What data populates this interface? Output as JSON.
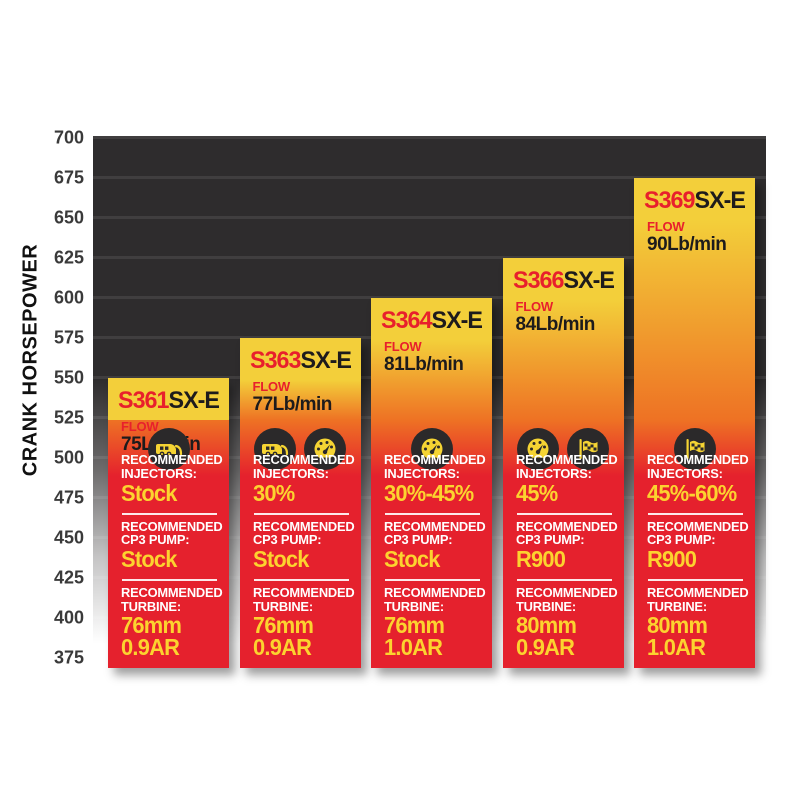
{
  "chart_data": {
    "type": "bar",
    "title": "",
    "ylabel": "CRANK HORSEPOWER",
    "ylim": [
      375,
      700
    ],
    "ytick_step": 25,
    "yticks": [
      700,
      675,
      650,
      625,
      600,
      575,
      550,
      525,
      500,
      475,
      450,
      425,
      400,
      375
    ],
    "categories": [
      "S361SX-E",
      "S363SX-E",
      "S364SX-E",
      "S366SX-E",
      "S369SX-E"
    ],
    "values": [
      550,
      575,
      600,
      625,
      675
    ],
    "grid": "horizontal",
    "legend": "none"
  },
  "colors": {
    "plot_background": "#2e2c2d",
    "bar_yellow": "#f3cf3a",
    "bar_orange": "#ee7224",
    "bar_red": "#e5212d",
    "accent_red": "#e8202c",
    "value_yellow": "#fcd32f",
    "icon_circle": "#2b292a",
    "white": "#ffffff"
  },
  "bars": [
    {
      "model_prefix": "S361",
      "model_suffix": "SX-E",
      "flow_label": "FLOW",
      "flow_value": "75Lb/min",
      "icons": [
        "rv-icon"
      ],
      "injectors_label": "RECOMMENDED INJECTORS:",
      "injectors_value": "Stock",
      "cp3_label": "RECOMMENDED CP3 PUMP:",
      "cp3_value": "Stock",
      "turbine_label": "RECOMMENDED TURBINE:",
      "turbine_mm": "76mm",
      "turbine_ar": "0.9AR",
      "crank_horsepower": 550
    },
    {
      "model_prefix": "S363",
      "model_suffix": "SX-E",
      "flow_label": "FLOW",
      "flow_value": "77Lb/min",
      "icons": [
        "rv-icon",
        "gauge-icon"
      ],
      "injectors_label": "RECOMMENDED INJECTORS:",
      "injectors_value": "30%",
      "cp3_label": "RECOMMENDED CP3 PUMP:",
      "cp3_value": "Stock",
      "turbine_label": "RECOMMENDED TURBINE:",
      "turbine_mm": "76mm",
      "turbine_ar": "0.9AR",
      "crank_horsepower": 575
    },
    {
      "model_prefix": "S364",
      "model_suffix": "SX-E",
      "flow_label": "FLOW",
      "flow_value": "81Lb/min",
      "icons": [
        "gauge-icon"
      ],
      "injectors_label": "RECOMMENDED INJECTORS:",
      "injectors_value": "30%-45%",
      "cp3_label": "RECOMMENDED CP3 PUMP:",
      "cp3_value": "Stock",
      "turbine_label": "RECOMMENDED TURBINE:",
      "turbine_mm": "76mm",
      "turbine_ar": "1.0AR",
      "crank_horsepower": 600
    },
    {
      "model_prefix": "S366",
      "model_suffix": "SX-E",
      "flow_label": "FLOW",
      "flow_value": "84Lb/min",
      "icons": [
        "gauge-icon",
        "flag-icon"
      ],
      "injectors_label": "RECOMMENDED INJECTORS:",
      "injectors_value": "45%",
      "cp3_label": "RECOMMENDED CP3 PUMP:",
      "cp3_value": "R900",
      "turbine_label": "RECOMMENDED TURBINE:",
      "turbine_mm": "80mm",
      "turbine_ar": "0.9AR",
      "crank_horsepower": 625
    },
    {
      "model_prefix": "S369",
      "model_suffix": "SX-E",
      "flow_label": "FLOW",
      "flow_value": "90Lb/min",
      "icons": [
        "flag-icon"
      ],
      "injectors_label": "RECOMMENDED INJECTORS:",
      "injectors_value": "45%-60%",
      "cp3_label": "RECOMMENDED CP3 PUMP:",
      "cp3_value": "R900",
      "turbine_label": "RECOMMENDED TURBINE:",
      "turbine_mm": "80mm",
      "turbine_ar": "1.0AR",
      "crank_horsepower": 675
    }
  ]
}
